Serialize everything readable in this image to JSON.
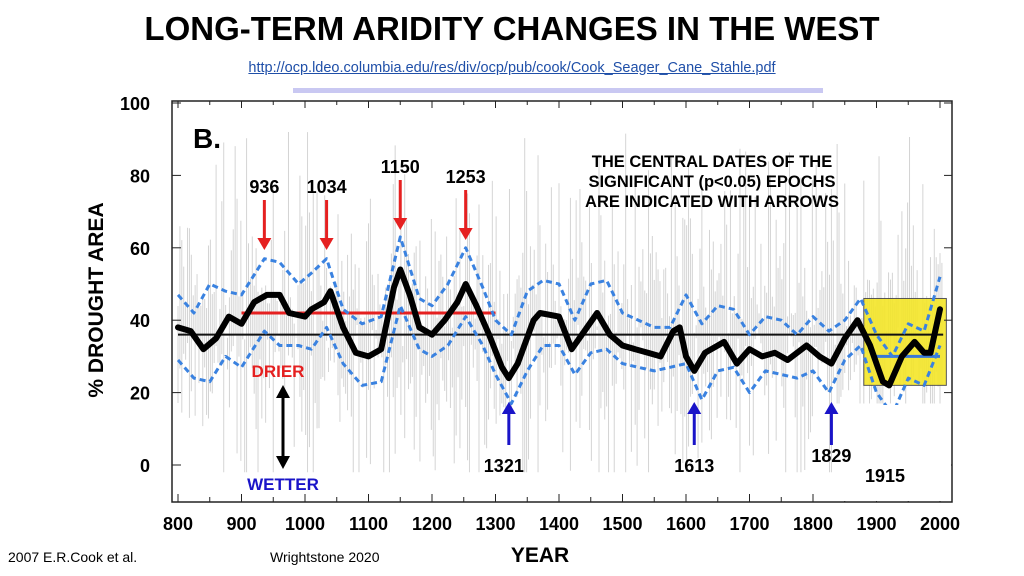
{
  "title": "LONG-TERM ARIDITY CHANGES IN THE WEST",
  "link": "http://ocp.ldeo.columbia.edu/res/div/ocp/pub/cook/Cook_Seager_Cane_Stahle.pdf",
  "footer": {
    "left": "2007 E.R.Cook et al.",
    "right": "Wrightstone 2020"
  },
  "chart_data": {
    "type": "line",
    "panel_label": "B.",
    "xlabel": "YEAR",
    "ylabel": "% DROUGHT AREA",
    "xlim": [
      800,
      2000
    ],
    "ylim": [
      -10,
      100
    ],
    "xticks": [
      800,
      900,
      1000,
      1100,
      1200,
      1300,
      1400,
      1500,
      1600,
      1700,
      1800,
      1900,
      2000
    ],
    "yticks": [
      0,
      20,
      40,
      60,
      80,
      100
    ],
    "note": [
      "THE CENTRAL DATES OF THE",
      "SIGNIFICANT (p<0.05) EPOCHS",
      "ARE INDICATED WITH ARROWS"
    ],
    "smoothed": {
      "x": [
        800,
        820,
        840,
        860,
        880,
        900,
        920,
        940,
        960,
        975,
        1000,
        1010,
        1030,
        1040,
        1060,
        1080,
        1100,
        1120,
        1140,
        1150,
        1165,
        1180,
        1200,
        1220,
        1240,
        1253,
        1270,
        1290,
        1310,
        1321,
        1335,
        1360,
        1370,
        1400,
        1420,
        1440,
        1460,
        1480,
        1500,
        1520,
        1540,
        1560,
        1580,
        1590,
        1600,
        1613,
        1630,
        1660,
        1680,
        1700,
        1720,
        1740,
        1760,
        1790,
        1810,
        1829,
        1850,
        1870,
        1890,
        1910,
        1920,
        1940,
        1960,
        1975,
        1985,
        2000
      ],
      "y": [
        38,
        37,
        32,
        35,
        41,
        39,
        45,
        47,
        47,
        42,
        41,
        43,
        45,
        48,
        38,
        31,
        30,
        32,
        49,
        54,
        47,
        38,
        36,
        40,
        45,
        50,
        44,
        36,
        27,
        24,
        28,
        40,
        42,
        41,
        32,
        37,
        42,
        36,
        33,
        32,
        31,
        30,
        37,
        38,
        30,
        26,
        31,
        34,
        28,
        32,
        30,
        31,
        29,
        33,
        30,
        28,
        35,
        40,
        33,
        23,
        22,
        30,
        34,
        31,
        31,
        43
      ]
    },
    "upper_ci": {
      "x": [
        800,
        825,
        850,
        875,
        900,
        936,
        960,
        990,
        1010,
        1034,
        1060,
        1090,
        1120,
        1150,
        1180,
        1200,
        1225,
        1253,
        1280,
        1300,
        1325,
        1350,
        1375,
        1400,
        1425,
        1450,
        1475,
        1500,
        1525,
        1550,
        1575,
        1600,
        1625,
        1650,
        1675,
        1700,
        1725,
        1750,
        1775,
        1800,
        1825,
        1850,
        1875,
        1900,
        1925,
        1950,
        1975,
        2000
      ],
      "y": [
        47,
        42,
        50,
        48,
        47,
        57,
        56,
        50,
        53,
        57,
        43,
        39,
        41,
        63,
        46,
        44,
        50,
        60,
        49,
        40,
        36,
        48,
        51,
        50,
        40,
        50,
        51,
        42,
        40,
        38,
        38,
        47,
        39,
        44,
        43,
        36,
        41,
        40,
        36,
        41,
        37,
        40,
        46,
        36,
        30,
        39,
        37,
        52
      ]
    },
    "lower_ci": {
      "x": [
        800,
        825,
        850,
        875,
        900,
        936,
        960,
        990,
        1010,
        1034,
        1060,
        1090,
        1120,
        1150,
        1180,
        1200,
        1225,
        1253,
        1280,
        1300,
        1325,
        1350,
        1375,
        1400,
        1425,
        1450,
        1475,
        1500,
        1525,
        1550,
        1575,
        1600,
        1625,
        1650,
        1675,
        1700,
        1725,
        1750,
        1775,
        1800,
        1825,
        1850,
        1875,
        1900,
        1925,
        1950,
        1975,
        2000
      ],
      "y": [
        29,
        24,
        23,
        30,
        27,
        37,
        33,
        33,
        32,
        38,
        28,
        22,
        23,
        44,
        32,
        30,
        33,
        41,
        33,
        25,
        17,
        26,
        33,
        33,
        25,
        31,
        32,
        28,
        27,
        26,
        27,
        28,
        18,
        26,
        27,
        20,
        26,
        25,
        24,
        26,
        20,
        29,
        33,
        20,
        14,
        24,
        22,
        33
      ]
    },
    "long_term_mean": 36,
    "epoch_lines": [
      {
        "from": 900,
        "to": 1300,
        "value": 42,
        "color": "#e52020"
      },
      {
        "from": 1900,
        "to": 2000,
        "value": 30,
        "color": "#3a78d8"
      }
    ],
    "highlight_box": {
      "from": 1880,
      "to": 2010,
      "low": 22,
      "high": 46,
      "color": "#f4e629"
    },
    "dry_epochs": [
      {
        "year": 936,
        "label": "936"
      },
      {
        "year": 1034,
        "label": "1034"
      },
      {
        "year": 1150,
        "label": "1150"
      },
      {
        "year": 1253,
        "label": "1253"
      }
    ],
    "wet_epochs": [
      {
        "year": 1321,
        "label": "1321"
      },
      {
        "year": 1613,
        "label": "1613"
      },
      {
        "year": 1829,
        "label": "1829"
      }
    ],
    "extra_label": "1915",
    "drier_label": "DRIER",
    "wetter_label": "WETTER",
    "colors": {
      "smoothed": "#000000",
      "ci": "#3a82e0",
      "dry": "#e52020",
      "wet": "#1a14c8",
      "annual": "#d4d4d4"
    }
  }
}
